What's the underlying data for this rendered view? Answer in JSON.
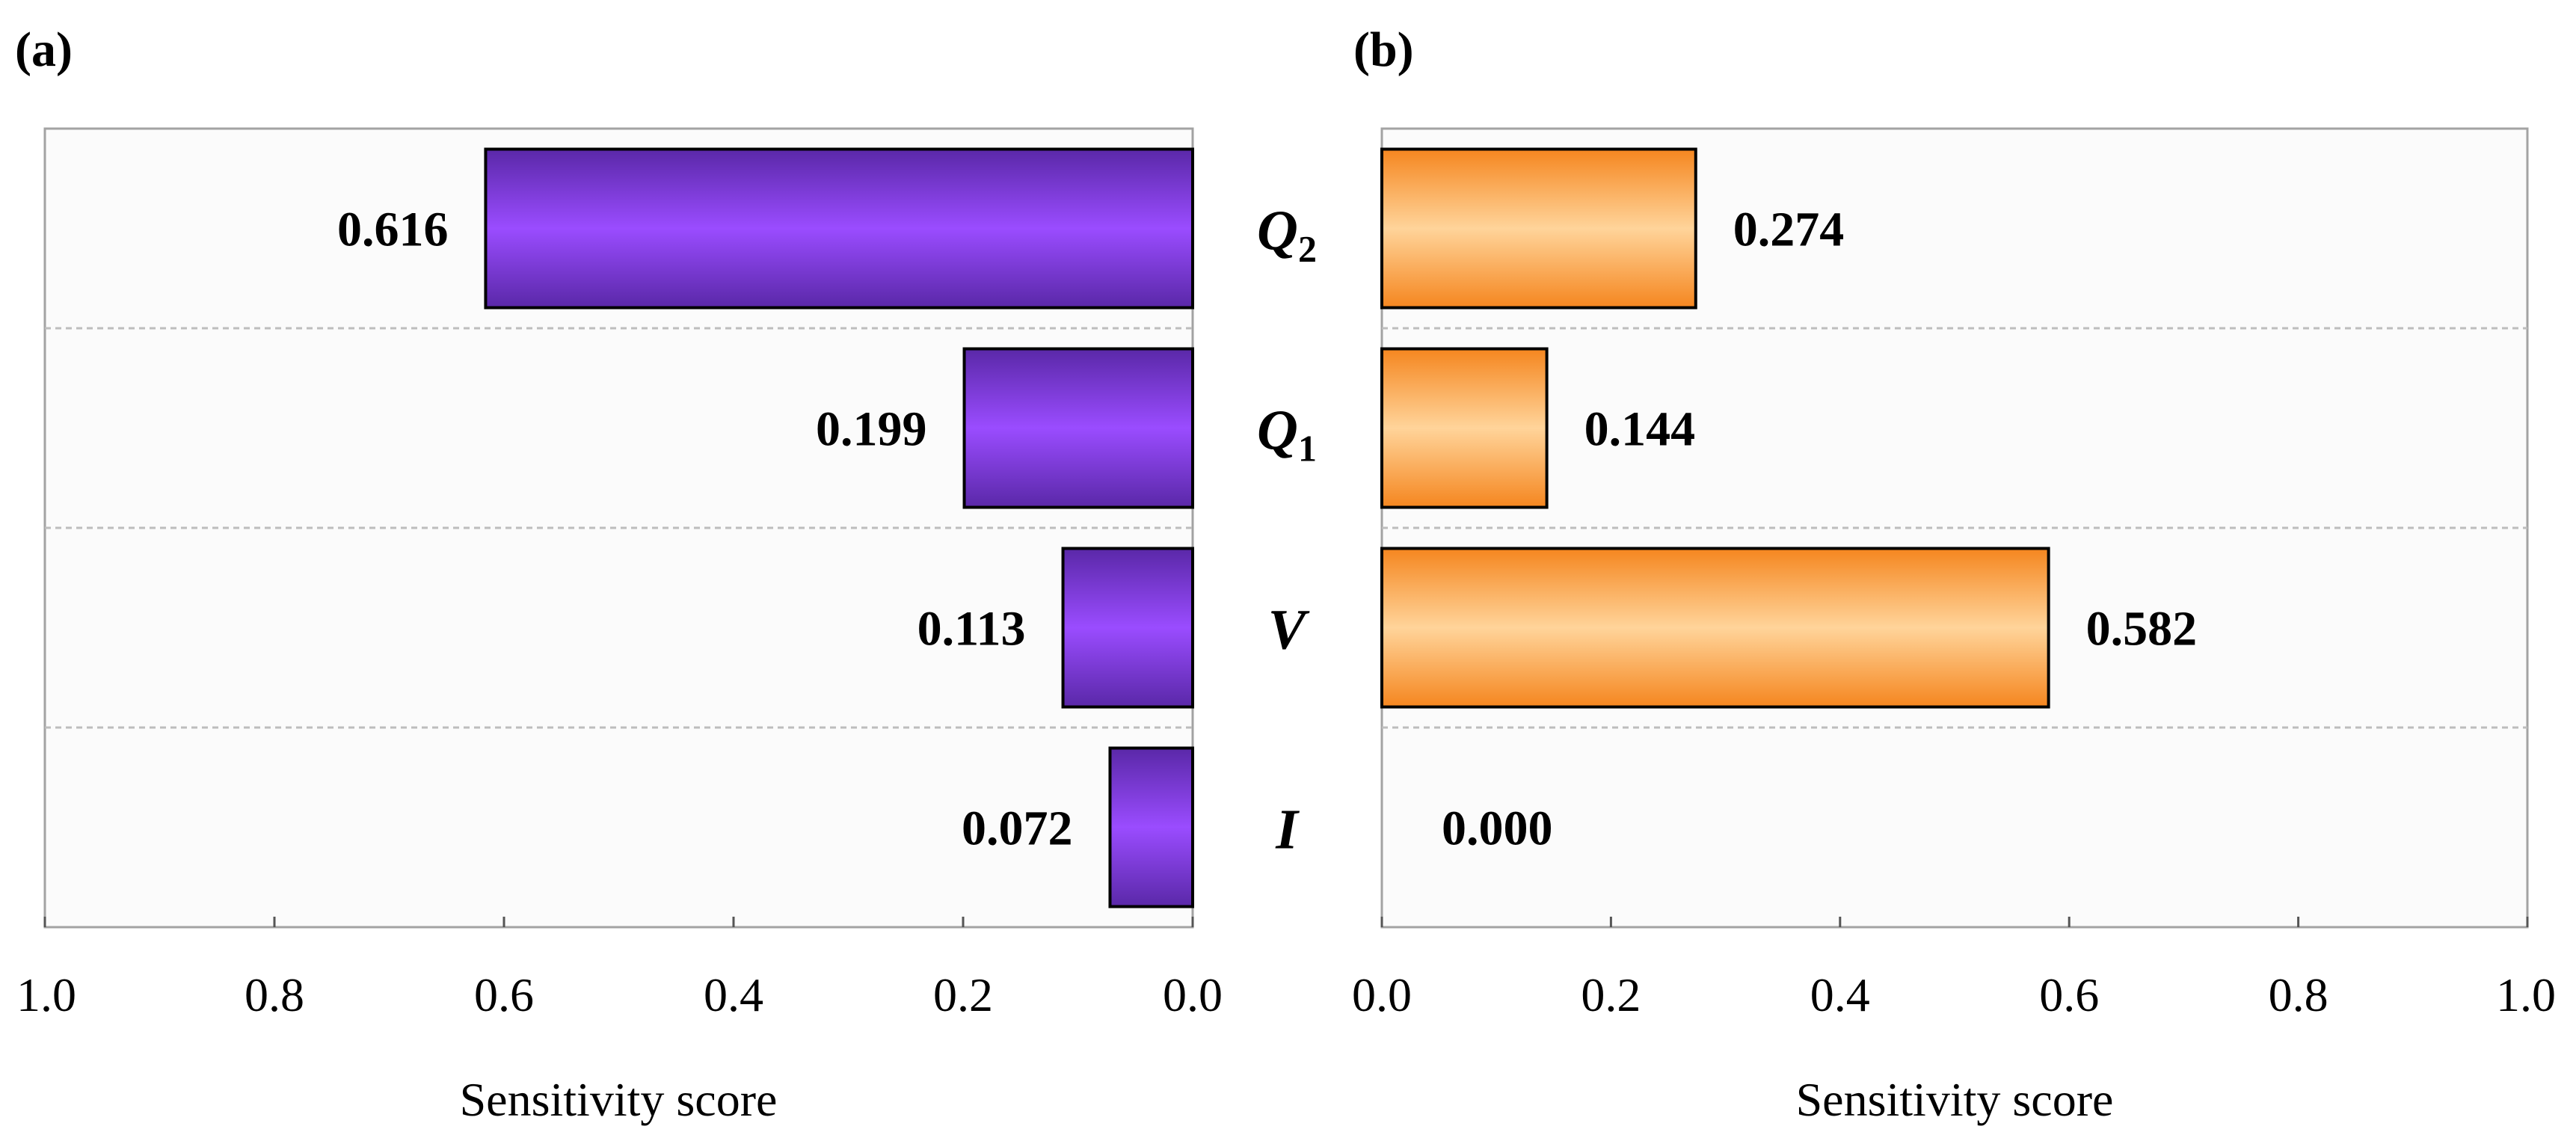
{
  "chart_data": [
    {
      "panel": "(a)",
      "type": "bar",
      "orientation": "horizontal",
      "direction": "reversed",
      "categories": [
        "Q2",
        "Q1",
        "V",
        "I"
      ],
      "category_labels": [
        {
          "main": "Q",
          "sub": "2"
        },
        {
          "main": "Q",
          "sub": "1"
        },
        {
          "main": "V",
          "sub": ""
        },
        {
          "main": "I",
          "sub": ""
        }
      ],
      "values": [
        0.616,
        0.199,
        0.113,
        0.072
      ],
      "value_labels": [
        "0.616",
        "0.199",
        "0.113",
        "0.072"
      ],
      "xlim": [
        0,
        1.0
      ],
      "ticks": [
        1.0,
        0.8,
        0.6,
        0.4,
        0.2,
        0.0
      ],
      "tick_labels": [
        "1.0",
        "0.8",
        "0.6",
        "0.4",
        "0.2",
        "0.0"
      ],
      "xlabel": "Sensitivity score",
      "bar_color": "#8f47fb",
      "bar_edge_color": "#5a28a8"
    },
    {
      "panel": "(b)",
      "type": "bar",
      "orientation": "horizontal",
      "direction": "normal",
      "categories": [
        "Q2",
        "Q1",
        "V",
        "I"
      ],
      "values": [
        0.274,
        0.144,
        0.582,
        0.0
      ],
      "value_labels": [
        "0.274",
        "0.144",
        "0.582",
        "0.000"
      ],
      "xlim": [
        0,
        1.0
      ],
      "ticks": [
        0.0,
        0.2,
        0.4,
        0.6,
        0.8,
        1.0
      ],
      "tick_labels": [
        "0.0",
        "0.2",
        "0.4",
        "0.6",
        "0.8",
        "1.0"
      ],
      "xlabel": "Sensitivity score",
      "bar_color": "#ffc98a",
      "bar_edge_color": "#f5861f"
    }
  ]
}
